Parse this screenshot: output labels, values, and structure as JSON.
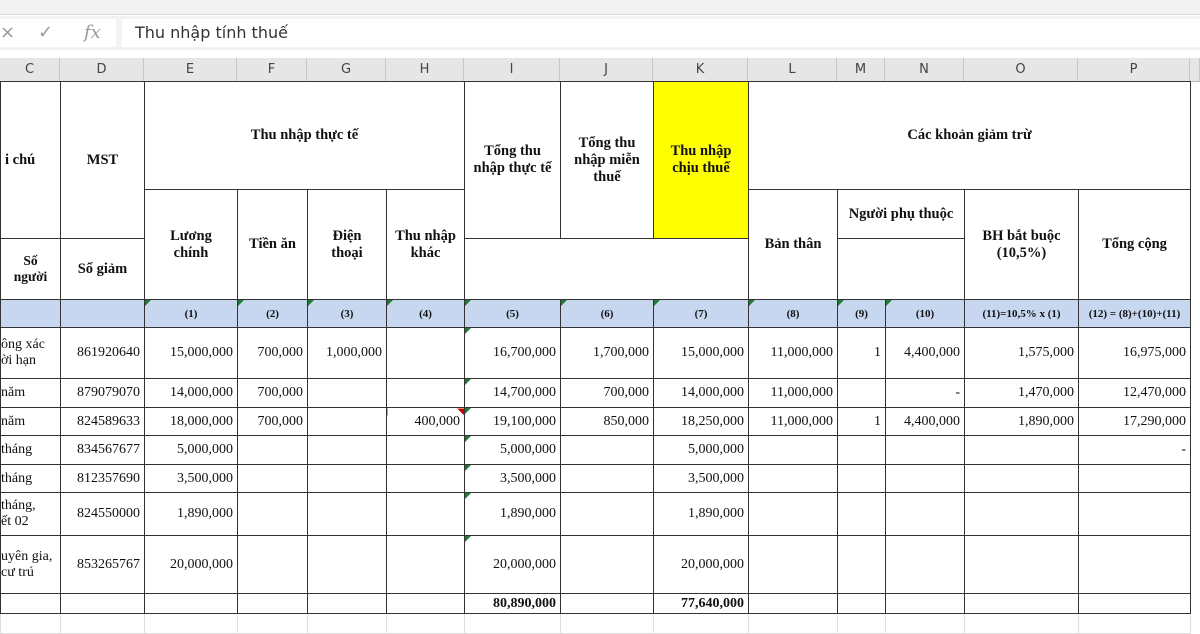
{
  "formula_bar": {
    "cancel_icon": "×",
    "enter_icon": "✓",
    "fx_icon": "fx",
    "value": "Thu nhập tính thuế"
  },
  "columns": [
    "C",
    "D",
    "E",
    "F",
    "G",
    "H",
    "I",
    "J",
    "K",
    "L",
    "M",
    "N",
    "O",
    "P"
  ],
  "header": {
    "c": "i chú",
    "d": "MST",
    "thu_nhap_thuc_te": "Thu nhập thực tế",
    "e": "Lương\nchính",
    "f": "Tiền ăn",
    "g": "Điện\nthoại",
    "h": "Thu nhập\nkhác",
    "i": "Tổng thu\nnhập thực tế",
    "j": "Tổng thu\nnhập miễn\nthuế",
    "k": "Thu nhập\nchịu thuế",
    "giam_tru": "Các khoản giảm trừ",
    "l": "Bản thân",
    "nguoi_phu_thuoc": "Người phụ thuộc",
    "m": "Số\nngười",
    "n": "Số giảm",
    "o": "BH bắt buộc\n(10,5%)",
    "p": "Tổng cộng"
  },
  "index_row": [
    "",
    "",
    "(1)",
    "(2)",
    "(3)",
    "(4)",
    "(5)",
    "(6)",
    "(7)",
    "(8)",
    "(9)",
    "(10)",
    "(11)=10,5% x (1)",
    "(12) = (8)+(10)+(11)"
  ],
  "rows": [
    [
      "ông xác\nời hạn",
      "861920640",
      "15,000,000",
      "700,000",
      "1,000,000",
      "",
      "16,700,000",
      "1,700,000",
      "15,000,000",
      "11,000,000",
      "1",
      "4,400,000",
      "1,575,000",
      "16,975,000"
    ],
    [
      "năm",
      "879079070",
      "14,000,000",
      "700,000",
      "",
      "",
      "14,700,000",
      "700,000",
      "14,000,000",
      "11,000,000",
      "",
      "-",
      "1,470,000",
      "12,470,000"
    ],
    [
      "năm",
      "824589633",
      "18,000,000",
      "700,000",
      "",
      "400,000",
      "19,100,000",
      "850,000",
      "18,250,000",
      "11,000,000",
      "1",
      "4,400,000",
      "1,890,000",
      "17,290,000"
    ],
    [
      "tháng",
      "834567677",
      "5,000,000",
      "",
      "",
      "",
      "5,000,000",
      "",
      "5,000,000",
      "",
      "",
      "",
      "",
      "-"
    ],
    [
      "tháng",
      "812357690",
      "3,500,000",
      "",
      "",
      "",
      "3,500,000",
      "",
      "3,500,000",
      "",
      "",
      "",
      "",
      ""
    ],
    [
      "tháng,\nết 02",
      "824550000",
      "1,890,000",
      "",
      "",
      "",
      "1,890,000",
      "",
      "1,890,000",
      "",
      "",
      "",
      "",
      ""
    ],
    [
      "uyên gia,\ncư trú",
      "853265767",
      "20,000,000",
      "",
      "",
      "",
      "20,000,000",
      "",
      "20,000,000",
      "",
      "",
      "",
      "",
      ""
    ]
  ],
  "totals": {
    "i": "80,890,000",
    "k": "77,640,000"
  },
  "colors": {
    "highlight": "#ffff00",
    "index_row": "#c6d7ef"
  }
}
